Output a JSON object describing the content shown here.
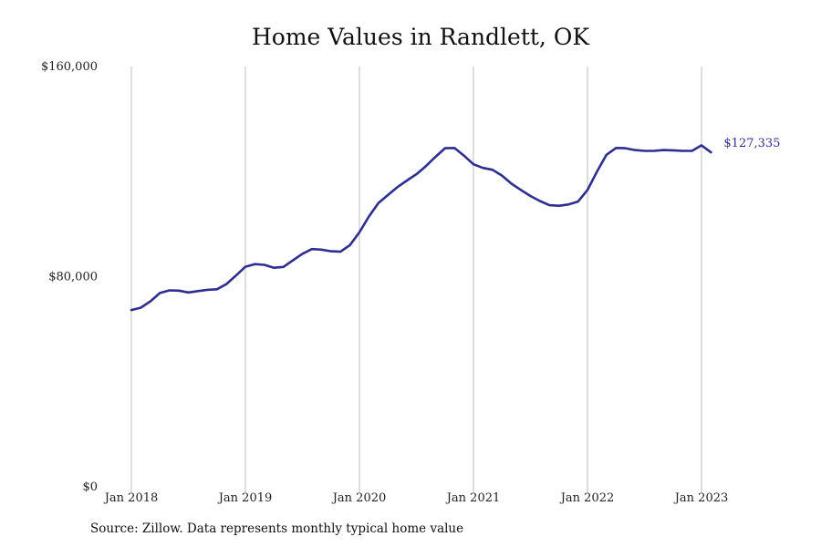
{
  "chart_data": {
    "type": "line",
    "title": "Home Values in Randlett, OK",
    "xlabel": "",
    "ylabel": "",
    "x_ticks": [
      "Jan 2018",
      "Jan 2019",
      "Jan 2020",
      "Jan 2021",
      "Jan 2022",
      "Jan 2023"
    ],
    "y_ticks": [
      "$0",
      "$80,000",
      "$160,000"
    ],
    "ylim": [
      0,
      160000
    ],
    "xlim": [
      "2018-01",
      "2023-02"
    ],
    "grid": "vertical",
    "line_color": "#2e2e8f",
    "end_label": "$127,335",
    "series": [
      {
        "x": [
          "2018-01",
          "2018-02",
          "2018-03",
          "2018-04",
          "2018-05",
          "2018-06",
          "2018-07",
          "2018-08",
          "2018-09",
          "2018-10",
          "2018-11",
          "2018-12",
          "2019-01",
          "2019-02",
          "2019-03",
          "2019-04",
          "2019-05",
          "2019-06",
          "2019-07",
          "2019-08",
          "2019-09",
          "2019-10",
          "2019-11",
          "2019-12",
          "2020-01",
          "2020-02",
          "2020-03",
          "2020-04",
          "2020-05",
          "2020-06",
          "2020-07",
          "2020-08",
          "2020-09",
          "2020-10",
          "2020-11",
          "2020-12",
          "2021-01",
          "2021-02",
          "2021-03",
          "2021-04",
          "2021-05",
          "2021-06",
          "2021-07",
          "2021-08",
          "2021-09",
          "2021-10",
          "2021-11",
          "2021-12",
          "2022-01",
          "2022-02",
          "2022-03",
          "2022-04",
          "2022-05",
          "2022-06",
          "2022-07",
          "2022-08",
          "2022-09",
          "2022-10",
          "2022-11",
          "2022-12",
          "2023-01",
          "2023-02"
        ],
        "values": [
          67300,
          68200,
          70600,
          73800,
          74800,
          74700,
          74000,
          74500,
          75000,
          75200,
          77200,
          80400,
          83800,
          84800,
          84500,
          83400,
          83700,
          86200,
          88700,
          90500,
          90300,
          89700,
          89500,
          92000,
          96900,
          102900,
          108000,
          111100,
          114100,
          116600,
          119000,
          122100,
          125600,
          128900,
          129000,
          126100,
          122800,
          121400,
          120700,
          118500,
          115400,
          113000,
          110700,
          108800,
          107200,
          107000,
          107500,
          108600,
          113000,
          120000,
          126400,
          129000,
          128900,
          128200,
          127900,
          127900,
          128200,
          128100,
          127900,
          127900,
          130000,
          127335
        ]
      }
    ]
  },
  "source_note": "Source: Zillow. Data represents monthly typical home value"
}
